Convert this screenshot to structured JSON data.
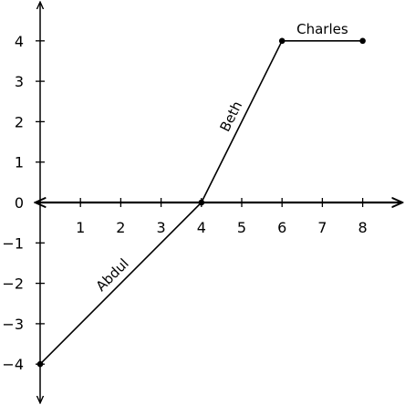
{
  "chart_data": {
    "type": "line",
    "title": "",
    "xlabel": "",
    "ylabel": "",
    "xlim": [
      -0.05,
      9
    ],
    "ylim": [
      -4.9,
      4.9
    ],
    "xticks": [
      1,
      2,
      3,
      4,
      5,
      6,
      7,
      8
    ],
    "yticks": [
      -4,
      -3,
      -2,
      -1,
      0,
      1,
      2,
      3,
      4
    ],
    "xtick_labels": [
      "1",
      "2",
      "3",
      "4",
      "5",
      "6",
      "7",
      "8"
    ],
    "ytick_labels": [
      "−4",
      "−3",
      "−2",
      "−1",
      "0",
      "1",
      "2",
      "3",
      "4"
    ],
    "grid": false,
    "series": [
      {
        "x": [
          0,
          4,
          6,
          8
        ],
        "y": [
          -4,
          0,
          4,
          4
        ],
        "color": "#000000"
      }
    ],
    "annotations": [
      {
        "text": "Abdul",
        "segment": 0
      },
      {
        "text": "Beth",
        "segment": 1
      },
      {
        "text": "Charles",
        "segment": 2
      }
    ]
  }
}
